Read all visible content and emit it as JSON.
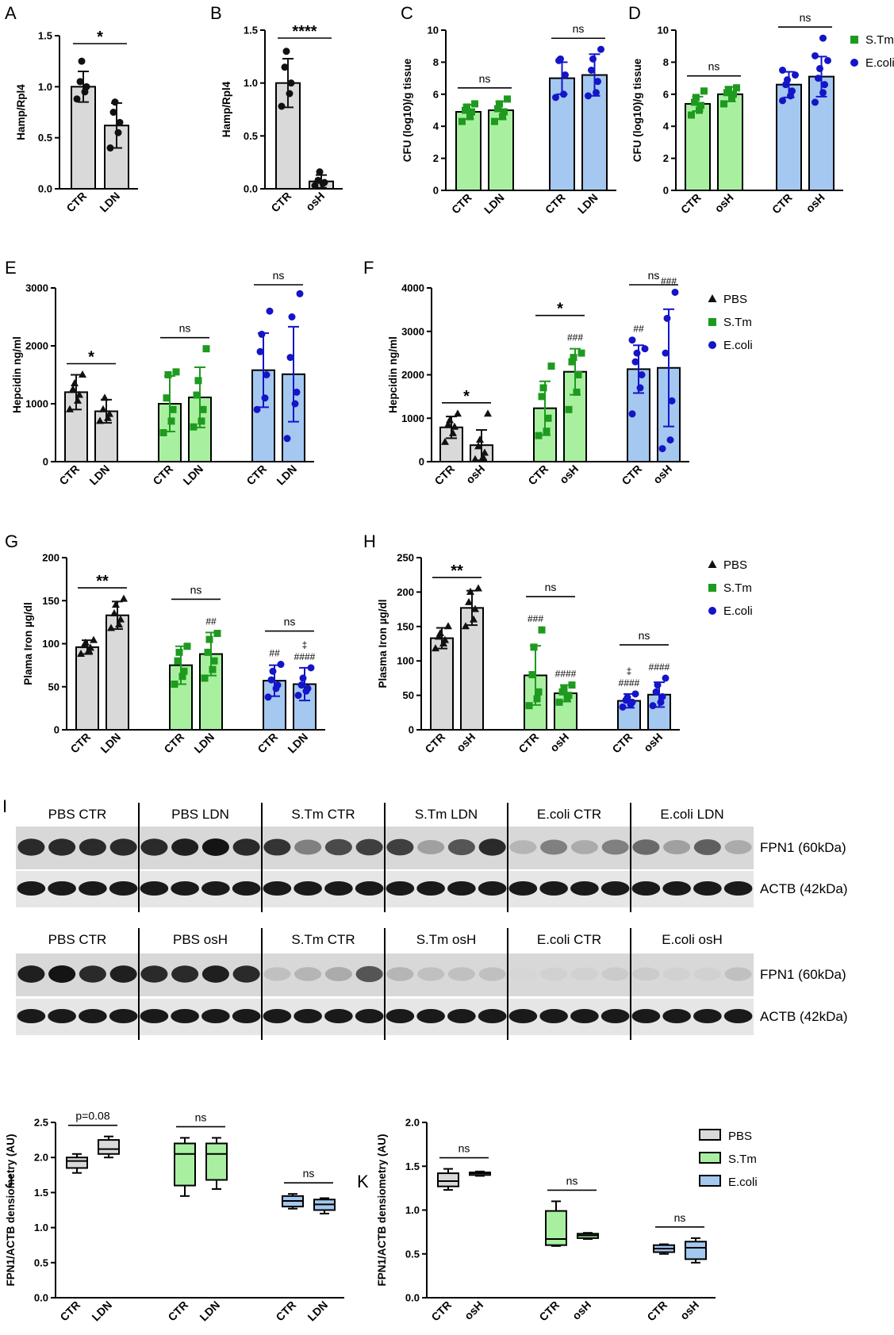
{
  "colors": {
    "pbs": "#d9d9d9",
    "stm": "#a8f0a0",
    "ecoli": "#a4c8f0",
    "stm_marker": "#1e9a1e",
    "ecoli_marker": "#1414c8",
    "pbs_marker": "#111111"
  },
  "legends": {
    "cd": [
      {
        "label": "S.Tm",
        "marker": "square",
        "color": "#1e9a1e"
      },
      {
        "label": "E.coli",
        "marker": "circle",
        "color": "#1414c8"
      }
    ],
    "fh": [
      {
        "label": "PBS",
        "marker": "triangle",
        "color": "#111111"
      },
      {
        "label": "S.Tm",
        "marker": "square",
        "color": "#1e9a1e"
      },
      {
        "label": "E.coli",
        "marker": "circle",
        "color": "#1414c8"
      }
    ],
    "jk": [
      {
        "label": "PBS",
        "color": "#d9d9d9"
      },
      {
        "label": "S.Tm",
        "color": "#a8f0a0"
      },
      {
        "label": "E.coli",
        "color": "#a4c8f0"
      }
    ]
  },
  "blots": {
    "panel_letter": "I",
    "top": {
      "groups": [
        "PBS CTR",
        "PBS LDN",
        "S.Tm CTR",
        "S.Tm LDN",
        "E.coli CTR",
        "E.coli LDN"
      ],
      "band_labels": [
        "FPN1 (60kDa)",
        "ACTB (42kDa)"
      ],
      "fpn1_intensity": [
        0.9,
        0.9,
        0.9,
        0.9,
        0.9,
        0.95,
        1.0,
        0.9,
        0.85,
        0.5,
        0.75,
        0.8,
        0.8,
        0.35,
        0.7,
        0.9,
        0.25,
        0.5,
        0.3,
        0.5,
        0.6,
        0.35,
        0.65,
        0.3
      ]
    },
    "bottom": {
      "groups": [
        "PBS CTR",
        "PBS osH",
        "S.Tm CTR",
        "S.Tm osH",
        "E.coli CTR",
        "E.coli osH"
      ],
      "band_labels": [
        "FPN1 (60kDa)",
        "ACTB (42kDa)"
      ],
      "fpn1_intensity": [
        0.95,
        1.0,
        0.9,
        0.95,
        0.9,
        0.9,
        0.95,
        0.9,
        0.2,
        0.25,
        0.3,
        0.7,
        0.25,
        0.2,
        0.2,
        0.2,
        0.1,
        0.12,
        0.12,
        0.15,
        0.15,
        0.12,
        0.12,
        0.2
      ]
    }
  },
  "chart_data": [
    {
      "panel": "A",
      "type": "bar",
      "ylabel": "Hamp/Rpl4",
      "ylim": [
        0,
        1.5
      ],
      "yticks": [
        "0.0",
        "0.5",
        "1.0",
        "1.5"
      ],
      "categories": [
        "CTR",
        "LDN"
      ],
      "group": "pbs",
      "values": [
        1.0,
        0.62
      ],
      "sd": [
        0.15,
        0.22
      ],
      "points": [
        [
          0.88,
          0.95,
          1.0,
          1.05,
          1.25
        ],
        [
          0.4,
          0.55,
          0.65,
          0.75,
          0.85
        ]
      ],
      "marker": "circle",
      "marker_color": "#111111",
      "significance": [
        {
          "from": 0,
          "to": 1,
          "label": "*"
        }
      ]
    },
    {
      "panel": "B",
      "type": "bar",
      "ylabel": "Hamp/Rpl4",
      "ylim": [
        0,
        1.5
      ],
      "yticks": [
        "0.0",
        "0.5",
        "1.0",
        "1.5"
      ],
      "categories": [
        "CTR",
        "osH"
      ],
      "group": "pbs",
      "values": [
        1.0,
        0.07
      ],
      "sd": [
        0.23,
        0.06
      ],
      "points": [
        [
          0.78,
          0.9,
          1.0,
          1.15,
          1.3
        ],
        [
          0.03,
          0.05,
          0.06,
          0.08,
          0.16
        ]
      ],
      "marker": "circle",
      "marker_color": "#111111",
      "significance": [
        {
          "from": 0,
          "to": 1,
          "label": "****"
        }
      ]
    },
    {
      "panel": "C",
      "type": "bar",
      "ylabel": "CFU (log10)/g tissue",
      "ylim": [
        0,
        10
      ],
      "yticks": [
        "0",
        "2",
        "4",
        "6",
        "8",
        "10"
      ],
      "categories": [
        "CTR",
        "LDN",
        "CTR",
        "LDN"
      ],
      "groups": [
        "stm",
        "stm",
        "ecoli",
        "ecoli"
      ],
      "values": [
        4.9,
        5.0,
        7.0,
        7.2
      ],
      "sd": [
        0.45,
        0.55,
        1.0,
        1.3
      ],
      "points": [
        [
          4.3,
          4.6,
          4.9,
          5.0,
          5.2,
          5.4
        ],
        [
          4.3,
          4.6,
          4.9,
          5.1,
          5.4,
          5.7
        ],
        [
          5.8,
          6.0,
          7.2,
          8.1,
          8.2
        ],
        [
          5.9,
          6.1,
          6.8,
          7.5,
          8.2,
          8.8
        ]
      ],
      "marker_groups": [
        "square",
        "square",
        "circle",
        "circle"
      ],
      "significance": [
        {
          "from": 0,
          "to": 1,
          "label": "ns"
        },
        {
          "from": 2,
          "to": 3,
          "label": "ns"
        }
      ]
    },
    {
      "panel": "D",
      "type": "bar",
      "ylabel": "CFU (log10)/g tissue",
      "ylim": [
        0,
        10
      ],
      "yticks": [
        "0",
        "2",
        "4",
        "6",
        "8",
        "10"
      ],
      "categories": [
        "CTR",
        "osH",
        "CTR",
        "osH"
      ],
      "groups": [
        "stm",
        "stm",
        "ecoli",
        "ecoli"
      ],
      "values": [
        5.4,
        6.0,
        6.6,
        7.1
      ],
      "sd": [
        0.45,
        0.45,
        0.8,
        1.25
      ],
      "points": [
        [
          4.7,
          5.0,
          5.3,
          5.5,
          5.8,
          6.2
        ],
        [
          5.4,
          5.8,
          6.0,
          6.1,
          6.3,
          6.4
        ],
        [
          5.6,
          5.9,
          6.2,
          6.6,
          6.9,
          7.2,
          7.5
        ],
        [
          5.5,
          6.1,
          6.6,
          7.0,
          7.6,
          8.1,
          8.4,
          9.5
        ]
      ],
      "marker_groups": [
        "square",
        "square",
        "circle",
        "circle"
      ],
      "significance": [
        {
          "from": 0,
          "to": 1,
          "label": "ns"
        },
        {
          "from": 2,
          "to": 3,
          "label": "ns"
        }
      ]
    },
    {
      "panel": "E",
      "type": "bar",
      "ylabel": "Hepcidin ng/ml",
      "ylim": [
        0,
        3000
      ],
      "yticks": [
        "0",
        "1000",
        "2000",
        "3000"
      ],
      "categories": [
        "CTR",
        "LDN",
        "CTR",
        "LDN",
        "CTR",
        "LDN"
      ],
      "groups": [
        "pbs",
        "pbs",
        "stm",
        "stm",
        "ecoli",
        "ecoli"
      ],
      "values": [
        1200,
        870,
        1000,
        1110,
        1580,
        1510
      ],
      "sd": [
        300,
        200,
        480,
        520,
        640,
        820
      ],
      "points": [
        [
          900,
          1050,
          1150,
          1250,
          1350,
          1500
        ],
        [
          700,
          750,
          820,
          900,
          1100
        ],
        [
          500,
          700,
          900,
          1100,
          1500,
          1550
        ],
        [
          600,
          700,
          900,
          1150,
          1400,
          1950
        ],
        [
          900,
          1100,
          1500,
          1900,
          2200,
          2600
        ],
        [
          400,
          1000,
          1200,
          1800,
          2500,
          2900
        ]
      ],
      "marker_groups": [
        "triangle",
        "triangle",
        "square",
        "square",
        "circle",
        "circle"
      ],
      "significance": [
        {
          "from": 0,
          "to": 1,
          "label": "*"
        },
        {
          "from": 2,
          "to": 3,
          "label": "ns"
        },
        {
          "from": 4,
          "to": 5,
          "label": "ns"
        }
      ]
    },
    {
      "panel": "F",
      "type": "bar",
      "ylabel": "Hepcidin ng/ml",
      "ylim": [
        0,
        4000
      ],
      "yticks": [
        "0",
        "1000",
        "2000",
        "3000",
        "4000"
      ],
      "categories": [
        "CTR",
        "osH",
        "CTR",
        "osH",
        "CTR",
        "osH"
      ],
      "groups": [
        "pbs",
        "pbs",
        "stm",
        "stm",
        "ecoli",
        "ecoli"
      ],
      "values": [
        790,
        380,
        1230,
        2070,
        2130,
        2160
      ],
      "sd": [
        250,
        350,
        620,
        530,
        550,
        1350
      ],
      "points": [
        [
          450,
          650,
          800,
          850,
          950,
          1100
        ],
        [
          50,
          100,
          200,
          350,
          500,
          1100
        ],
        [
          600,
          700,
          1000,
          1500,
          1700,
          2200
        ],
        [
          1200,
          1600,
          2000,
          2300,
          2400,
          2500
        ],
        [
          1100,
          1700,
          2000,
          2300,
          2500,
          2600,
          2800
        ],
        [
          300,
          500,
          1400,
          2500,
          3300,
          3900
        ]
      ],
      "marker_groups": [
        "triangle",
        "triangle",
        "square",
        "square",
        "circle",
        "circle"
      ],
      "annotations": [
        {
          "bar": 3,
          "lines": [
            "###"
          ]
        },
        {
          "bar": 4,
          "lines": [
            "##"
          ]
        },
        {
          "bar": 5,
          "lines": [
            "###"
          ]
        }
      ],
      "significance": [
        {
          "from": 0,
          "to": 1,
          "label": "*"
        },
        {
          "from": 2,
          "to": 3,
          "label": "*"
        },
        {
          "from": 4,
          "to": 5,
          "label": "ns"
        }
      ]
    },
    {
      "panel": "G",
      "type": "bar",
      "ylabel": "Plama Iron µg/dl",
      "ylim": [
        0,
        200
      ],
      "yticks": [
        "0",
        "50",
        "100",
        "150",
        "200"
      ],
      "categories": [
        "CTR",
        "LDN",
        "CTR",
        "LDN",
        "CTR",
        "LDN"
      ],
      "groups": [
        "pbs",
        "pbs",
        "stm",
        "stm",
        "ecoli",
        "ecoli"
      ],
      "values": [
        96,
        133,
        75,
        88,
        57,
        53
      ],
      "sd": [
        8,
        16,
        22,
        25,
        18,
        19
      ],
      "points": [
        [
          88,
          92,
          95,
          98,
          101,
          104
        ],
        [
          118,
          122,
          128,
          135,
          145,
          152
        ],
        [
          53,
          62,
          68,
          80,
          90,
          97
        ],
        [
          60,
          70,
          80,
          90,
          105,
          112
        ],
        [
          38,
          48,
          52,
          58,
          68,
          76
        ],
        [
          40,
          45,
          48,
          52,
          60,
          72
        ]
      ],
      "marker_groups": [
        "triangle",
        "triangle",
        "square",
        "square",
        "circle",
        "circle"
      ],
      "annotations": [
        {
          "bar": 3,
          "lines": [
            "##"
          ]
        },
        {
          "bar": 4,
          "lines": [
            "##"
          ]
        },
        {
          "bar": 5,
          "lines": [
            "‡",
            "####"
          ]
        }
      ],
      "significance": [
        {
          "from": 0,
          "to": 1,
          "label": "**"
        },
        {
          "from": 2,
          "to": 3,
          "label": "ns"
        },
        {
          "from": 4,
          "to": 5,
          "label": "ns"
        }
      ]
    },
    {
      "panel": "H",
      "type": "bar",
      "ylabel": "Plasma Iron µg/dl",
      "ylim": [
        0,
        250
      ],
      "yticks": [
        "0",
        "50",
        "100",
        "150",
        "200",
        "250"
      ],
      "categories": [
        "CTR",
        "osH",
        "CTR",
        "osH",
        "CTR",
        "osH"
      ],
      "groups": [
        "pbs",
        "pbs",
        "stm",
        "stm",
        "ecoli",
        "ecoli"
      ],
      "values": [
        133,
        177,
        79,
        53,
        42,
        51
      ],
      "sd": [
        15,
        25,
        43,
        12,
        10,
        18
      ],
      "points": [
        [
          118,
          125,
          130,
          135,
          140,
          150
        ],
        [
          150,
          160,
          175,
          185,
          200,
          205
        ],
        [
          35,
          45,
          55,
          80,
          120,
          145
        ],
        [
          40,
          45,
          50,
          55,
          60,
          65
        ],
        [
          33,
          37,
          40,
          43,
          47,
          52
        ],
        [
          35,
          40,
          48,
          55,
          65,
          75
        ]
      ],
      "marker_groups": [
        "triangle",
        "triangle",
        "square",
        "square",
        "circle",
        "circle"
      ],
      "annotations": [
        {
          "bar": 2,
          "lines": [
            "###"
          ]
        },
        {
          "bar": 3,
          "lines": [
            "####"
          ]
        },
        {
          "bar": 4,
          "lines": [
            "‡",
            "####"
          ]
        },
        {
          "bar": 5,
          "lines": [
            "####"
          ]
        }
      ],
      "significance": [
        {
          "from": 0,
          "to": 1,
          "label": "**"
        },
        {
          "from": 2,
          "to": 3,
          "label": "ns"
        },
        {
          "from": 4,
          "to": 5,
          "label": "ns"
        }
      ]
    },
    {
      "panel": "J",
      "type": "box",
      "ylabel": "FPN1/ACTB densiometry (AU)",
      "ylim": [
        0,
        2.5
      ],
      "yticks": [
        "0.0",
        "0.5",
        "1.0",
        "1.5",
        "2.0",
        "2.5"
      ],
      "categories": [
        "CTR",
        "LDN",
        "CTR",
        "LDN",
        "CTR",
        "LDN"
      ],
      "groups": [
        "pbs",
        "pbs",
        "stm",
        "stm",
        "ecoli",
        "ecoli"
      ],
      "boxes": [
        [
          1.78,
          1.85,
          1.95,
          2.0,
          2.05
        ],
        [
          2.0,
          2.05,
          2.12,
          2.25,
          2.3
        ],
        [
          1.45,
          1.6,
          2.05,
          2.2,
          2.28
        ],
        [
          1.55,
          1.68,
          2.05,
          2.2,
          2.28
        ],
        [
          1.27,
          1.3,
          1.38,
          1.45,
          1.48
        ],
        [
          1.2,
          1.25,
          1.33,
          1.4,
          1.42
        ]
      ],
      "significance": [
        {
          "from": 0,
          "to": 1,
          "label": "p=0.08"
        },
        {
          "from": 2,
          "to": 3,
          "label": "ns"
        },
        {
          "from": 4,
          "to": 5,
          "label": "ns"
        }
      ]
    },
    {
      "panel": "K",
      "type": "box",
      "ylabel": "FPN1/ACTB densiometry (AU)",
      "ylim": [
        0,
        2.0
      ],
      "yticks": [
        "0.0",
        "0.5",
        "1.0",
        "1.5",
        "2.0"
      ],
      "categories": [
        "CTR",
        "osH",
        "CTR",
        "osH",
        "CTR",
        "osH"
      ],
      "groups": [
        "pbs",
        "pbs",
        "stm",
        "stm",
        "ecoli",
        "ecoli"
      ],
      "boxes": [
        [
          1.23,
          1.27,
          1.33,
          1.42,
          1.47
        ],
        [
          1.39,
          1.4,
          1.42,
          1.43,
          1.44
        ],
        [
          0.59,
          0.6,
          0.67,
          0.99,
          1.1
        ],
        [
          0.67,
          0.68,
          0.71,
          0.73,
          0.74
        ],
        [
          0.5,
          0.52,
          0.56,
          0.6,
          0.61
        ],
        [
          0.4,
          0.44,
          0.57,
          0.64,
          0.68
        ]
      ],
      "significance": [
        {
          "from": 0,
          "to": 1,
          "label": "ns"
        },
        {
          "from": 2,
          "to": 3,
          "label": "ns"
        },
        {
          "from": 4,
          "to": 5,
          "label": "ns"
        }
      ]
    }
  ]
}
